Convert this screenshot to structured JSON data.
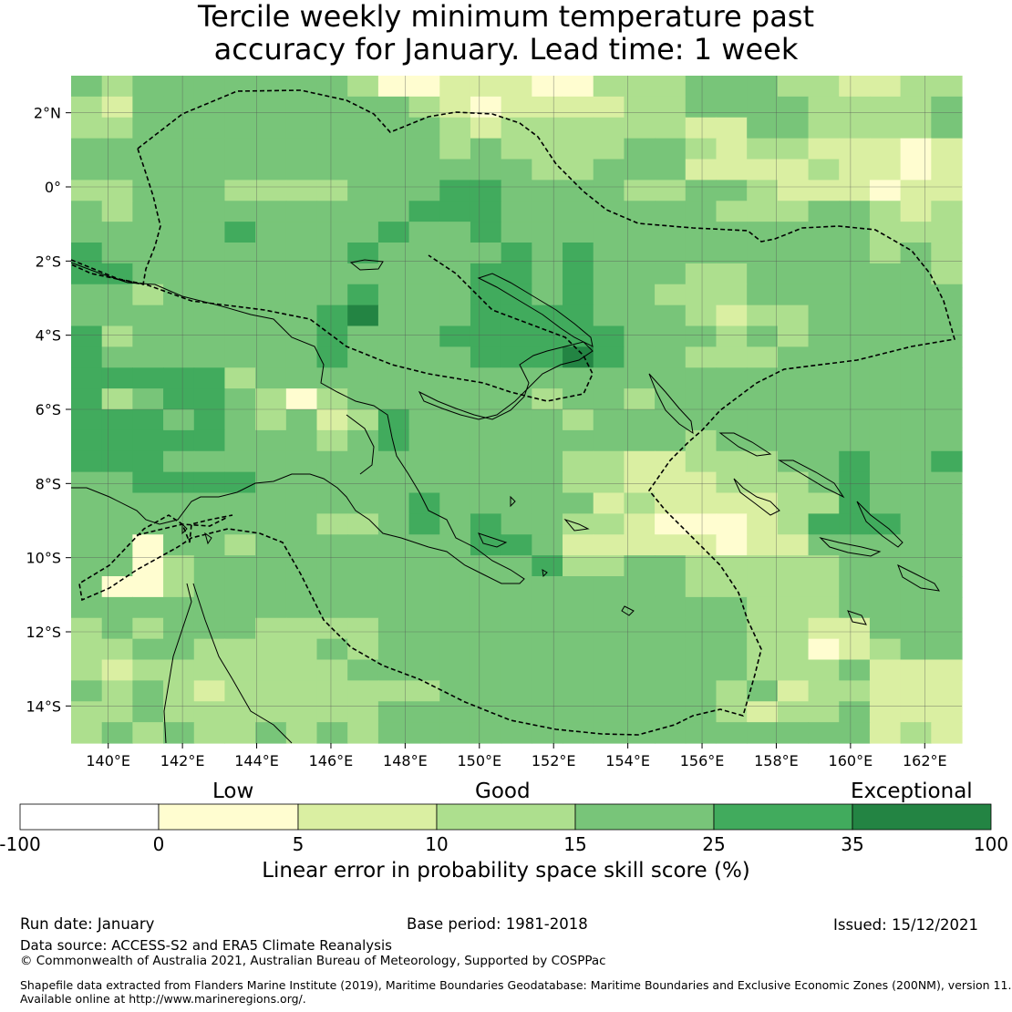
{
  "title": {
    "line1": "Tercile weekly minimum temperature past",
    "line2": "accuracy for January. Lead time: 1 week"
  },
  "map": {
    "region": "Papua New Guinea and Solomon Sea region",
    "lon_range": [
      139,
      163
    ],
    "lat_range": [
      -15,
      3
    ],
    "cell_size_deg": 0.84,
    "x_tick_labels": [
      "140°E",
      "142°E",
      "144°E",
      "146°E",
      "148°E",
      "150°E",
      "152°E",
      "154°E",
      "156°E",
      "158°E",
      "160°E",
      "162°E"
    ],
    "x_tick_values": [
      140,
      142,
      144,
      146,
      148,
      150,
      152,
      154,
      156,
      158,
      160,
      162
    ],
    "y_tick_labels": [
      "2°N",
      "0°",
      "2°S",
      "4°S",
      "6°S",
      "8°S",
      "10°S",
      "12°S",
      "14°S"
    ],
    "y_tick_values": [
      2,
      0,
      -2,
      -4,
      -6,
      -8,
      -10,
      -12,
      -14
    ],
    "colors": {
      "lt0": "#ffffff",
      "b0_5": "#fffdd0",
      "b5_10": "#daefa2",
      "b10_15": "#addf8e",
      "b15_25": "#78c579",
      "b25_35": "#41ab5d",
      "b35_100": "#238443",
      "grid": "#555555",
      "coast": "#000000"
    },
    "grid_categories_note": "0=0-5, 1=5-10, 2=10-15, 3=15-25, 4=25-35, 5=35-100",
    "grid": [
      [
        3,
        2,
        3,
        3,
        3,
        3,
        3,
        3,
        3,
        2,
        0,
        0,
        1,
        1,
        1,
        0,
        0,
        2,
        2,
        2,
        3,
        3,
        3,
        2,
        2,
        1,
        1,
        2,
        2
      ],
      [
        2,
        1,
        3,
        3,
        3,
        3,
        3,
        3,
        3,
        3,
        3,
        2,
        1,
        0,
        1,
        1,
        1,
        1,
        2,
        2,
        3,
        3,
        3,
        3,
        2,
        2,
        2,
        2,
        3
      ],
      [
        2,
        2,
        3,
        3,
        3,
        3,
        3,
        3,
        3,
        3,
        3,
        3,
        2,
        1,
        2,
        2,
        2,
        2,
        2,
        2,
        1,
        1,
        3,
        3,
        2,
        2,
        2,
        2,
        3
      ],
      [
        3,
        3,
        3,
        3,
        3,
        3,
        3,
        3,
        3,
        3,
        3,
        3,
        2,
        3,
        2,
        2,
        2,
        2,
        3,
        3,
        2,
        1,
        2,
        2,
        1,
        1,
        1,
        0,
        1
      ],
      [
        3,
        3,
        3,
        3,
        3,
        3,
        3,
        3,
        3,
        3,
        3,
        3,
        3,
        3,
        3,
        2,
        2,
        3,
        3,
        3,
        1,
        1,
        1,
        1,
        2,
        1,
        1,
        0,
        1
      ],
      [
        2,
        2,
        3,
        3,
        3,
        2,
        2,
        2,
        2,
        3,
        3,
        3,
        4,
        4,
        3,
        3,
        3,
        3,
        2,
        2,
        3,
        3,
        2,
        1,
        1,
        1,
        0,
        1,
        1
      ],
      [
        3,
        2,
        3,
        3,
        3,
        3,
        3,
        3,
        3,
        3,
        3,
        4,
        4,
        4,
        3,
        3,
        3,
        3,
        3,
        3,
        3,
        2,
        2,
        2,
        3,
        3,
        2,
        1,
        2
      ],
      [
        3,
        3,
        3,
        3,
        3,
        4,
        3,
        3,
        3,
        3,
        4,
        3,
        3,
        4,
        3,
        3,
        3,
        3,
        3,
        3,
        3,
        3,
        3,
        3,
        3,
        3,
        2,
        2,
        2
      ],
      [
        4,
        3,
        3,
        3,
        3,
        3,
        3,
        3,
        3,
        4,
        3,
        3,
        3,
        3,
        4,
        3,
        4,
        3,
        3,
        3,
        3,
        3,
        3,
        3,
        3,
        3,
        2,
        3,
        2
      ],
      [
        4,
        4,
        3,
        3,
        3,
        3,
        3,
        3,
        3,
        3,
        3,
        3,
        3,
        4,
        4,
        3,
        4,
        3,
        3,
        3,
        2,
        2,
        3,
        3,
        3,
        3,
        3,
        3,
        2
      ],
      [
        3,
        3,
        2,
        3,
        3,
        3,
        3,
        3,
        3,
        4,
        3,
        3,
        3,
        4,
        4,
        3,
        4,
        3,
        3,
        2,
        2,
        2,
        3,
        3,
        3,
        3,
        3,
        3,
        3
      ],
      [
        3,
        3,
        3,
        3,
        3,
        3,
        3,
        3,
        4,
        5,
        3,
        3,
        3,
        4,
        4,
        4,
        4,
        3,
        3,
        3,
        2,
        1,
        2,
        2,
        3,
        3,
        3,
        3,
        3
      ],
      [
        4,
        2,
        3,
        3,
        3,
        3,
        3,
        3,
        4,
        3,
        3,
        3,
        4,
        4,
        4,
        4,
        4,
        4,
        3,
        3,
        3,
        2,
        3,
        2,
        3,
        3,
        3,
        3,
        3
      ],
      [
        4,
        3,
        3,
        3,
        3,
        3,
        3,
        3,
        4,
        3,
        3,
        3,
        3,
        4,
        4,
        4,
        5,
        4,
        3,
        3,
        2,
        2,
        2,
        3,
        3,
        3,
        3,
        3,
        3
      ],
      [
        4,
        4,
        4,
        4,
        4,
        2,
        3,
        3,
        3,
        3,
        3,
        3,
        3,
        3,
        3,
        3,
        3,
        3,
        3,
        3,
        3,
        3,
        3,
        3,
        3,
        3,
        3,
        3,
        3
      ],
      [
        4,
        2,
        3,
        4,
        4,
        3,
        2,
        0,
        2,
        3,
        3,
        3,
        3,
        3,
        3,
        2,
        3,
        3,
        2,
        3,
        3,
        3,
        3,
        3,
        3,
        3,
        3,
        3,
        3
      ],
      [
        4,
        4,
        4,
        3,
        4,
        3,
        2,
        3,
        1,
        2,
        4,
        3,
        3,
        3,
        3,
        3,
        2,
        3,
        3,
        3,
        3,
        3,
        3,
        3,
        3,
        3,
        3,
        3,
        3
      ],
      [
        4,
        4,
        4,
        4,
        4,
        3,
        3,
        3,
        2,
        3,
        4,
        3,
        3,
        3,
        3,
        3,
        3,
        3,
        3,
        3,
        2,
        3,
        3,
        3,
        3,
        3,
        3,
        3,
        3
      ],
      [
        4,
        4,
        4,
        3,
        3,
        3,
        3,
        3,
        3,
        3,
        3,
        3,
        3,
        3,
        3,
        3,
        2,
        2,
        1,
        1,
        2,
        2,
        2,
        3,
        3,
        4,
        3,
        3,
        4
      ],
      [
        3,
        3,
        4,
        4,
        4,
        4,
        3,
        3,
        3,
        3,
        3,
        3,
        3,
        3,
        3,
        3,
        2,
        2,
        1,
        1,
        1,
        2,
        2,
        2,
        3,
        4,
        3,
        3,
        3
      ],
      [
        3,
        3,
        3,
        3,
        3,
        3,
        3,
        3,
        3,
        3,
        3,
        4,
        3,
        3,
        3,
        3,
        3,
        1,
        2,
        1,
        1,
        1,
        1,
        2,
        2,
        4,
        3,
        3,
        3
      ],
      [
        3,
        3,
        3,
        3,
        3,
        3,
        3,
        3,
        2,
        2,
        3,
        4,
        3,
        4,
        3,
        3,
        2,
        2,
        1,
        0,
        0,
        0,
        1,
        2,
        4,
        4,
        4,
        3,
        3
      ],
      [
        3,
        3,
        0,
        3,
        3,
        2,
        3,
        3,
        3,
        3,
        3,
        3,
        3,
        4,
        4,
        3,
        1,
        1,
        1,
        1,
        1,
        0,
        1,
        1,
        3,
        3,
        3,
        3,
        3
      ],
      [
        3,
        3,
        0,
        2,
        3,
        3,
        3,
        3,
        3,
        3,
        3,
        3,
        3,
        3,
        3,
        4,
        2,
        2,
        3,
        3,
        2,
        2,
        2,
        2,
        2,
        3,
        3,
        3,
        3
      ],
      [
        3,
        0,
        0,
        2,
        3,
        3,
        3,
        3,
        3,
        3,
        3,
        3,
        3,
        3,
        3,
        3,
        3,
        3,
        3,
        3,
        2,
        2,
        2,
        2,
        2,
        3,
        3,
        3,
        3
      ],
      [
        3,
        3,
        3,
        3,
        3,
        3,
        3,
        3,
        3,
        3,
        3,
        3,
        3,
        3,
        3,
        3,
        3,
        3,
        3,
        3,
        3,
        3,
        2,
        2,
        2,
        3,
        3,
        3,
        3
      ],
      [
        2,
        3,
        2,
        3,
        3,
        3,
        2,
        2,
        2,
        2,
        3,
        3,
        3,
        3,
        3,
        3,
        3,
        3,
        3,
        3,
        3,
        3,
        2,
        2,
        1,
        1,
        3,
        3,
        3
      ],
      [
        2,
        2,
        3,
        3,
        2,
        2,
        2,
        2,
        3,
        2,
        3,
        3,
        3,
        3,
        3,
        3,
        3,
        3,
        3,
        3,
        3,
        3,
        2,
        2,
        0,
        1,
        2,
        3,
        3
      ],
      [
        2,
        1,
        2,
        2,
        2,
        2,
        2,
        2,
        2,
        3,
        3,
        3,
        3,
        3,
        3,
        3,
        3,
        3,
        3,
        3,
        3,
        3,
        2,
        2,
        2,
        3,
        1,
        1,
        1
      ],
      [
        3,
        2,
        3,
        2,
        1,
        2,
        2,
        2,
        2,
        2,
        2,
        2,
        3,
        3,
        3,
        3,
        3,
        3,
        3,
        3,
        3,
        2,
        3,
        1,
        2,
        2,
        1,
        1,
        1
      ],
      [
        2,
        2,
        3,
        2,
        2,
        2,
        2,
        2,
        2,
        2,
        3,
        3,
        3,
        3,
        3,
        3,
        3,
        3,
        3,
        3,
        3,
        2,
        1,
        2,
        2,
        3,
        1,
        1,
        1
      ],
      [
        2,
        3,
        2,
        3,
        2,
        2,
        3,
        2,
        3,
        2,
        3,
        3,
        3,
        3,
        3,
        3,
        3,
        3,
        3,
        3,
        3,
        3,
        3,
        3,
        3,
        3,
        1,
        2,
        1
      ]
    ]
  },
  "colorbar": {
    "category_labels": [
      "Low",
      "Good",
      "Exceptional"
    ],
    "ticks": [
      "-100",
      "0",
      "5",
      "10",
      "15",
      "25",
      "35",
      "100"
    ],
    "axis_label": "Linear error in probability space skill score (%)"
  },
  "footer": {
    "run_date": "Run date: January",
    "base_period": "Base period: 1981-2018",
    "issued": "Issued: 15/12/2021",
    "data_source": "Data source: ACCESS-S2 and ERA5 Climate Reanalysis",
    "copyright": "© Commonwealth of Australia 2021, Australian Bureau of Meteorology, Supported by COSPPac",
    "shapefile_line1": "Shapefile data extracted from Flanders Marine Institute (2019), Maritime Boundaries Geodatabase: Maritime Boundaries and Exclusive Economic Zones (200NM), version 11.",
    "shapefile_line2": "Available online at http://www.marineregions.org/."
  }
}
